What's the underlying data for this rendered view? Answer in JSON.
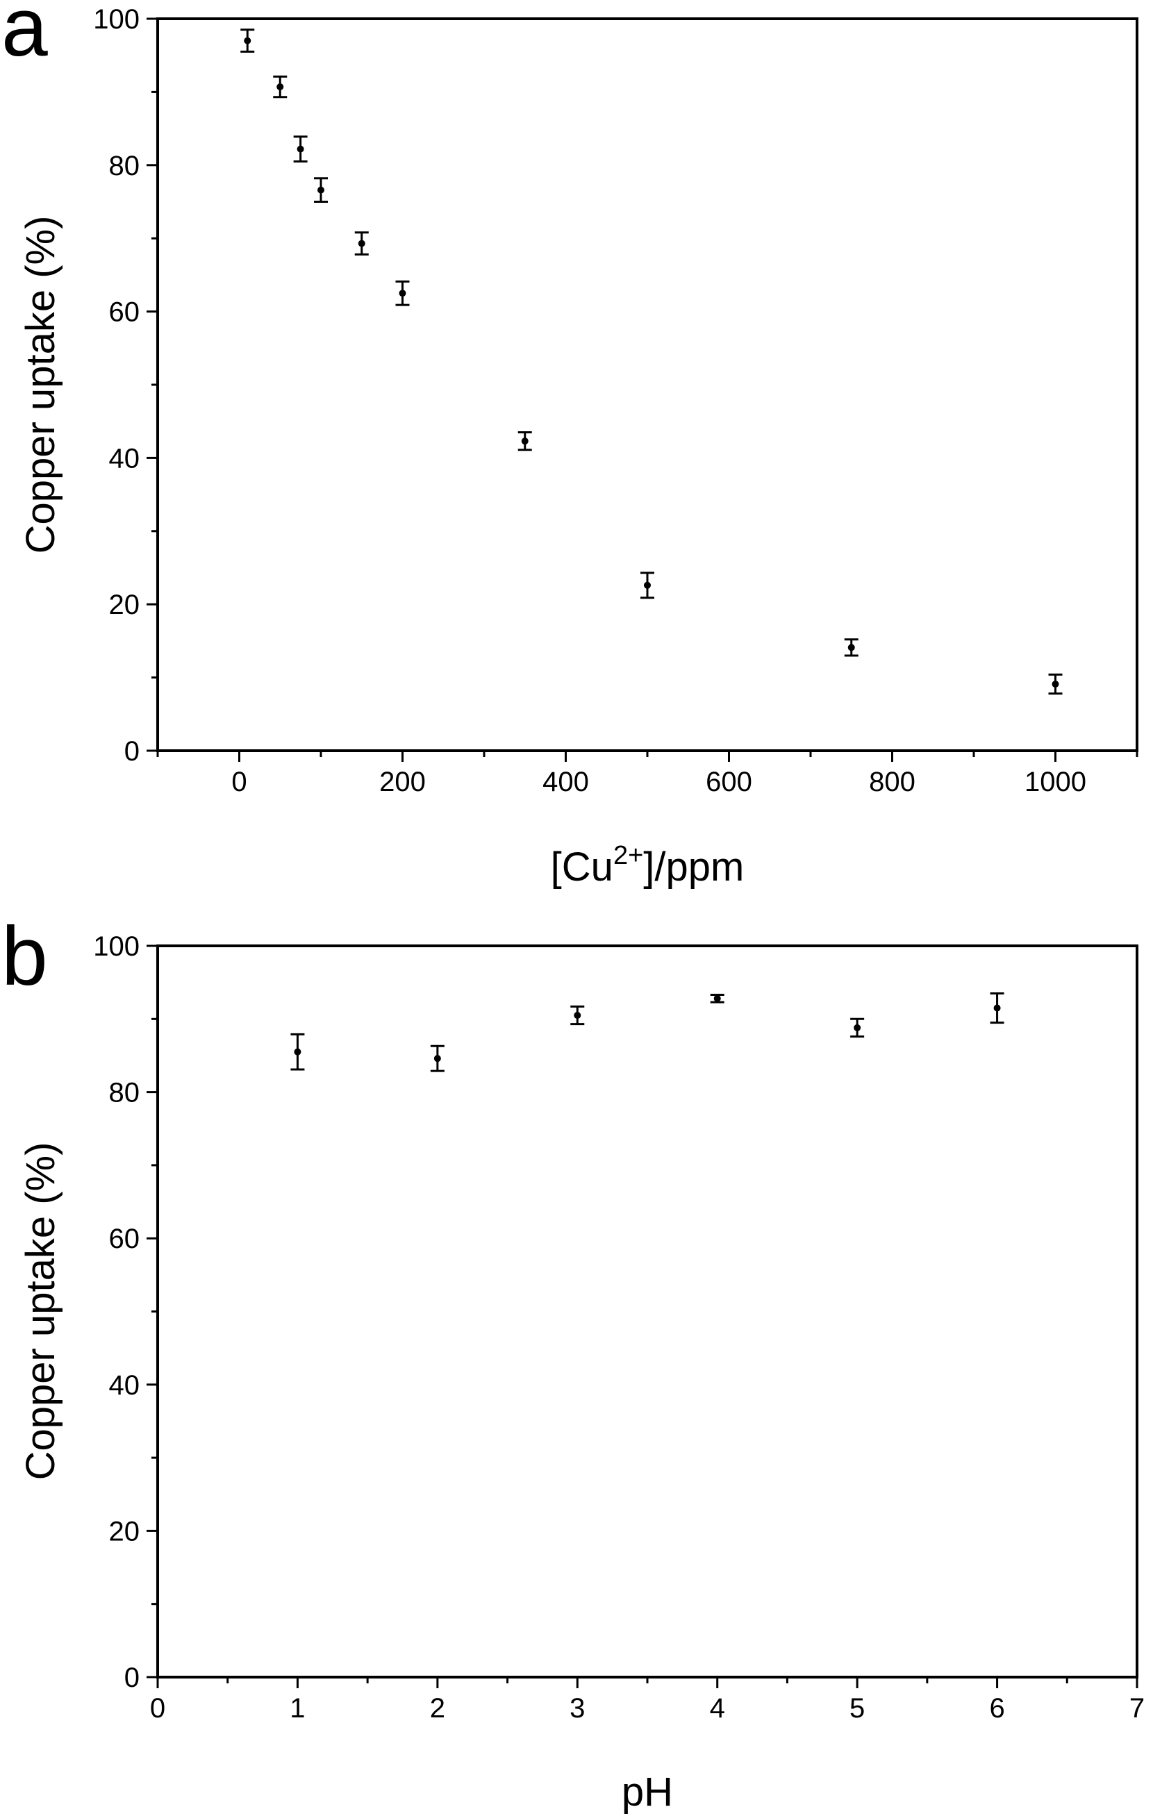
{
  "chart_data": [
    {
      "type": "scatter",
      "panel_letter": "a",
      "xlabel": "[Cu2+]/ppm",
      "xlabel_parts": {
        "pre": "[Cu",
        "sup": "2+",
        "post": "]/ppm"
      },
      "ylabel": "Copper uptake (%)",
      "xlim": [
        -100,
        1100
      ],
      "ylim": [
        0,
        100
      ],
      "x_ticks": [
        0,
        200,
        400,
        600,
        800,
        1000
      ],
      "x_minor_ticks": [
        -100,
        100,
        300,
        500,
        700,
        900,
        1100
      ],
      "y_ticks": [
        0,
        20,
        40,
        60,
        80,
        100
      ],
      "y_minor_ticks": [
        10,
        30,
        50,
        70,
        90
      ],
      "grid": false,
      "series": [
        {
          "x": [
            10,
            50,
            75,
            100,
            150,
            200,
            350,
            500,
            750,
            1000
          ],
          "y": [
            97.0,
            90.7,
            82.2,
            76.6,
            69.3,
            62.5,
            42.3,
            22.6,
            14.1,
            9.1
          ],
          "err": [
            1.5,
            1.4,
            1.7,
            1.6,
            1.5,
            1.6,
            1.2,
            1.7,
            1.1,
            1.3
          ]
        }
      ]
    },
    {
      "type": "scatter",
      "panel_letter": "b",
      "xlabel": "pH",
      "ylabel": "Copper uptake (%)",
      "xlim": [
        0,
        7
      ],
      "ylim": [
        0,
        100
      ],
      "x_ticks": [
        0,
        1,
        2,
        3,
        4,
        5,
        6,
        7
      ],
      "x_minor_ticks": [
        0.5,
        1.5,
        2.5,
        3.5,
        4.5,
        5.5,
        6.5
      ],
      "y_ticks": [
        0,
        20,
        40,
        60,
        80,
        100
      ],
      "y_minor_ticks": [
        10,
        30,
        50,
        70,
        90
      ],
      "grid": false,
      "series": [
        {
          "x": [
            1,
            2,
            3,
            4,
            5,
            6
          ],
          "y": [
            85.5,
            84.6,
            90.5,
            92.8,
            88.8,
            91.5
          ],
          "err": [
            2.4,
            1.7,
            1.2,
            0.5,
            1.2,
            2.0
          ]
        }
      ]
    }
  ]
}
